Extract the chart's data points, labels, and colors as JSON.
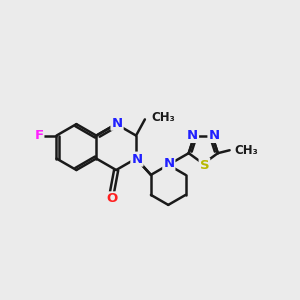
{
  "background_color": "#ebebeb",
  "bond_color": "#1a1a1a",
  "bond_width": 1.8,
  "atom_colors": {
    "C": "#1a1a1a",
    "N": "#2020ff",
    "O": "#ff2020",
    "F": "#ff20ff",
    "S": "#b8b800"
  },
  "font_size": 9.5,
  "small_font_size": 8.5
}
